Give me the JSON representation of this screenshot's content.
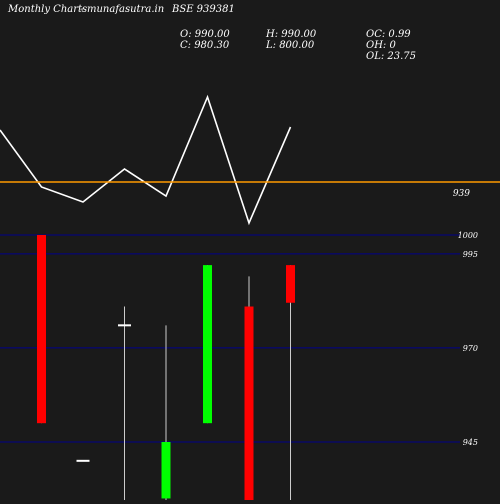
{
  "header": {
    "site": "Monthly Charts",
    "separator": "-",
    "domain": "munafasutra.in",
    "symbol": "BSE 939381",
    "ohlc": {
      "open": "O: 990.00",
      "close": "C: 980.30",
      "high": "H: 990.00",
      "low": "L: 800.00",
      "oc": "OC: 0.99",
      "oh": "OH: 0",
      "ol": "OL: 23.75"
    }
  },
  "colors": {
    "background": "#1a1a1a",
    "up": "#00ff00",
    "down": "#ff0000",
    "neutral": "#ffffff",
    "line": "#ffffff",
    "reference_line": "#ff9900",
    "gridline": "#00008b"
  },
  "chart_data": [
    {
      "type": "line",
      "series": [
        {
          "values": [
            1.0,
            0.62,
            0.52,
            0.74,
            0.56,
            1.22,
            0.38,
            1.02
          ]
        }
      ],
      "reference": {
        "value": 939,
        "label": "939"
      }
    },
    {
      "type": "candlestick",
      "y_axis": {
        "ticks": [
          {
            "value": 1000,
            "label": "1000"
          },
          {
            "value": 995,
            "label": "995"
          },
          {
            "value": 970,
            "label": "970"
          },
          {
            "value": 945,
            "label": "945"
          }
        ]
      },
      "candles": [
        {
          "open": 1000,
          "high": 1000,
          "low": 950,
          "close": 950,
          "color": "down"
        },
        {
          "open": 940,
          "high": 940,
          "low": 940,
          "close": 940,
          "color": "neutral"
        },
        {
          "open": 976,
          "high": 981,
          "low": 928,
          "close": 976,
          "color": "neutral"
        },
        {
          "open": 930,
          "high": 976,
          "low": 928,
          "close": 945,
          "color": "up"
        },
        {
          "open": 950,
          "high": 992,
          "low": 950,
          "close": 992,
          "color": "up"
        },
        {
          "open": 981,
          "high": 989,
          "low": 928,
          "close": 928,
          "color": "down"
        },
        {
          "open": 992,
          "high": 992,
          "low": 928,
          "close": 982,
          "color": "down"
        }
      ]
    }
  ]
}
